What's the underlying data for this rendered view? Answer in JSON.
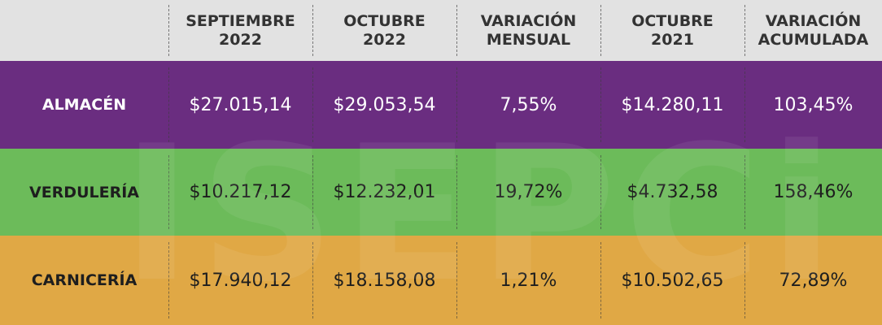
{
  "watermark": "ISEPCi",
  "table": {
    "header": [
      [
        "SEPTIEMBRE",
        "2022"
      ],
      [
        "OCTUBRE",
        "2022"
      ],
      [
        "VARIACIÓN",
        "MENSUAL"
      ],
      [
        "OCTUBRE",
        "2021"
      ],
      [
        "VARIACIÓN",
        "ACUMULADA"
      ]
    ],
    "rows": [
      [
        "ALMACÉN",
        "$27.015,14",
        "$29.053,54",
        "7,55%",
        "$14.280,11",
        "103,45%"
      ],
      [
        "VERDULERÍA",
        "$10.217,12",
        "$12.232,01",
        "19,72%",
        "$4.732,58",
        "158,46%"
      ],
      [
        "CARNICERÍA",
        "$17.940,12",
        "$18.158,08",
        "1,21%",
        "$10.502,65",
        "72,89%"
      ]
    ]
  }
}
